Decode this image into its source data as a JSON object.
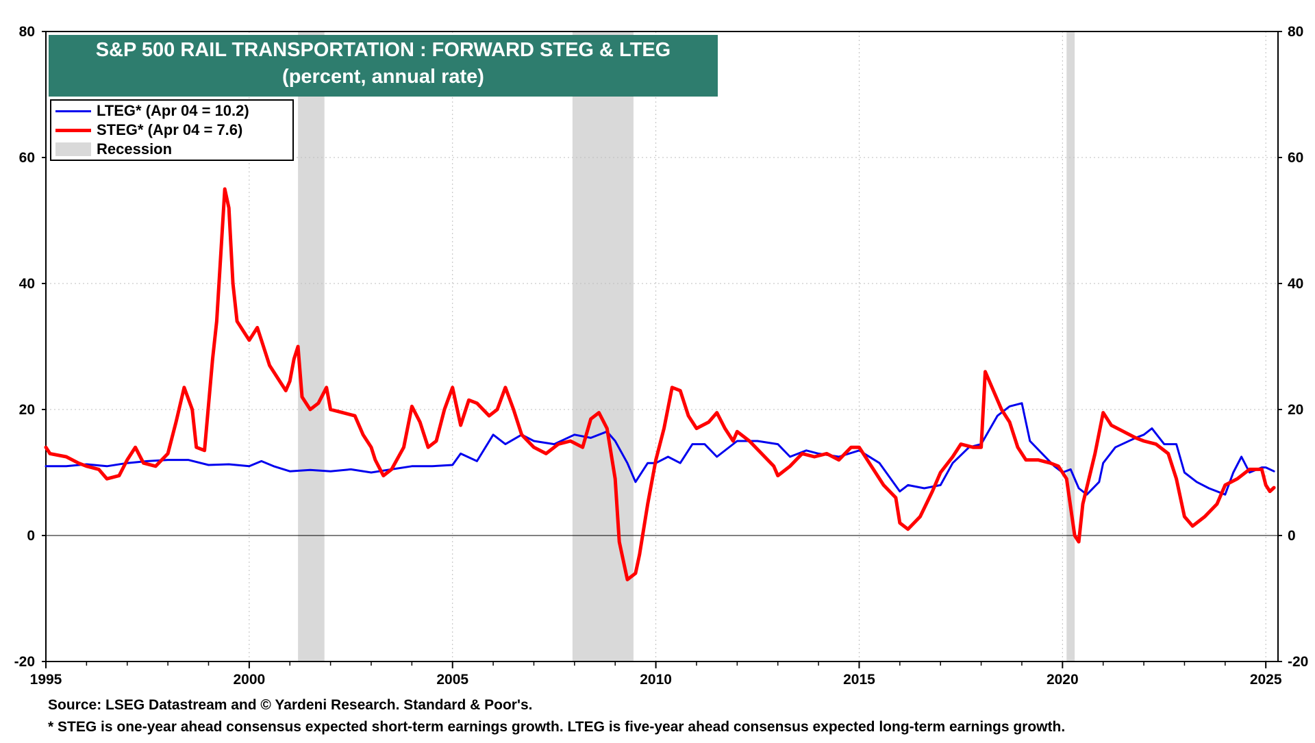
{
  "title": {
    "line1": "S&P 500 RAIL TRANSPORTATION : FORWARD STEG & LTEG",
    "line2": "(percent, annual rate)"
  },
  "legend": {
    "lteg": "LTEG* (Apr 04 = 10.2)",
    "steg": "STEG* (Apr 04 = 7.6)",
    "recession": "Recession"
  },
  "footer": {
    "source": "Source: LSEG Datastream and © Yardeni Research. Standard & Poor's.",
    "note": "* STEG is one-year ahead consensus expected short-term earnings growth. LTEG is five-year ahead consensus expected long-term earnings growth."
  },
  "colors": {
    "lteg": "#0000ee",
    "steg": "#ff0000",
    "recession": "#d9d9d9",
    "title_bg": "#2e7d6e"
  },
  "chart_data": {
    "type": "line",
    "title": "S&P 500 RAIL TRANSPORTATION : FORWARD STEG & LTEG",
    "subtitle": "(percent, annual rate)",
    "xlabel": "",
    "ylabel": "",
    "xlim": [
      1995,
      2025.3
    ],
    "ylim": [
      -20,
      80
    ],
    "x_ticks": [
      1995,
      2000,
      2005,
      2010,
      2015,
      2020,
      2025
    ],
    "x_tick_labels": [
      "1995",
      "2000",
      "2005",
      "2010",
      "2015",
      "2020",
      "2025"
    ],
    "y_ticks": [
      -20,
      0,
      20,
      40,
      60,
      80
    ],
    "y_tick_labels": [
      "-20",
      "0",
      "20",
      "40",
      "60",
      "80"
    ],
    "grid": true,
    "legend_position": "top-left",
    "recessions": [
      [
        2001.2,
        2001.85
      ],
      [
        2007.95,
        2009.45
      ],
      [
        2020.1,
        2020.3
      ]
    ],
    "series": [
      {
        "name": "LTEG* (Apr 04 = 10.2)",
        "color": "#0000ee",
        "points": [
          [
            1995,
            11
          ],
          [
            1995.5,
            11
          ],
          [
            1996,
            11.3
          ],
          [
            1996.5,
            11
          ],
          [
            1997,
            11.5
          ],
          [
            1997.5,
            11.8
          ],
          [
            1998,
            12
          ],
          [
            1998.5,
            12
          ],
          [
            1999,
            11.2
          ],
          [
            1999.5,
            11.3
          ],
          [
            2000,
            11
          ],
          [
            2000.3,
            11.8
          ],
          [
            2000.6,
            11
          ],
          [
            2001,
            10.2
          ],
          [
            2001.5,
            10.4
          ],
          [
            2002,
            10.2
          ],
          [
            2002.5,
            10.5
          ],
          [
            2003,
            10
          ],
          [
            2003.5,
            10.5
          ],
          [
            2004,
            11
          ],
          [
            2004.5,
            11
          ],
          [
            2005,
            11.2
          ],
          [
            2005.2,
            13
          ],
          [
            2005.6,
            11.8
          ],
          [
            2006,
            16
          ],
          [
            2006.3,
            14.5
          ],
          [
            2006.7,
            16
          ],
          [
            2007,
            15
          ],
          [
            2007.5,
            14.5
          ],
          [
            2008,
            16
          ],
          [
            2008.4,
            15.5
          ],
          [
            2008.8,
            16.5
          ],
          [
            2009,
            15
          ],
          [
            2009.3,
            11.5
          ],
          [
            2009.5,
            8.5
          ],
          [
            2009.8,
            11.5
          ],
          [
            2010,
            11.5
          ],
          [
            2010.3,
            12.5
          ],
          [
            2010.6,
            11.5
          ],
          [
            2010.9,
            14.5
          ],
          [
            2011.2,
            14.5
          ],
          [
            2011.5,
            12.5
          ],
          [
            2012,
            15
          ],
          [
            2012.5,
            15
          ],
          [
            2013,
            14.5
          ],
          [
            2013.3,
            12.5
          ],
          [
            2013.7,
            13.5
          ],
          [
            2014,
            13
          ],
          [
            2014.5,
            12.5
          ],
          [
            2015,
            13.5
          ],
          [
            2015.5,
            11.5
          ],
          [
            2016,
            7
          ],
          [
            2016.2,
            8
          ],
          [
            2016.6,
            7.5
          ],
          [
            2017,
            8
          ],
          [
            2017.3,
            11.5
          ],
          [
            2017.7,
            14
          ],
          [
            2018,
            14.5
          ],
          [
            2018.4,
            19
          ],
          [
            2018.7,
            20.5
          ],
          [
            2019,
            21
          ],
          [
            2019.2,
            15
          ],
          [
            2019.5,
            13
          ],
          [
            2019.8,
            11
          ],
          [
            2020,
            10
          ],
          [
            2020.2,
            10.5
          ],
          [
            2020.4,
            7.5
          ],
          [
            2020.6,
            6.5
          ],
          [
            2020.9,
            8.5
          ],
          [
            2021,
            11.5
          ],
          [
            2021.3,
            14
          ],
          [
            2021.8,
            15.5
          ],
          [
            2022,
            16
          ],
          [
            2022.2,
            17
          ],
          [
            2022.5,
            14.5
          ],
          [
            2022.8,
            14.5
          ],
          [
            2023,
            10
          ],
          [
            2023.3,
            8.5
          ],
          [
            2023.6,
            7.5
          ],
          [
            2024,
            6.5
          ],
          [
            2024.2,
            10
          ],
          [
            2024.4,
            12.5
          ],
          [
            2024.6,
            10
          ],
          [
            2024.9,
            10.8
          ],
          [
            2025,
            10.8
          ],
          [
            2025.2,
            10.2
          ]
        ]
      },
      {
        "name": "STEG* (Apr 04 = 7.6)",
        "color": "#ff0000",
        "points": [
          [
            1995,
            14
          ],
          [
            1995.1,
            13
          ],
          [
            1995.5,
            12.5
          ],
          [
            1995.8,
            11.5
          ],
          [
            1996,
            11
          ],
          [
            1996.3,
            10.5
          ],
          [
            1996.5,
            9
          ],
          [
            1996.8,
            9.5
          ],
          [
            1997,
            12
          ],
          [
            1997.2,
            14
          ],
          [
            1997.4,
            11.5
          ],
          [
            1997.7,
            11
          ],
          [
            1998,
            13
          ],
          [
            1998.2,
            18
          ],
          [
            1998.4,
            23.5
          ],
          [
            1998.6,
            20
          ],
          [
            1998.7,
            14
          ],
          [
            1998.9,
            13.5
          ],
          [
            1999.1,
            28
          ],
          [
            1999.2,
            34
          ],
          [
            1999.4,
            55
          ],
          [
            1999.5,
            52
          ],
          [
            1999.6,
            40
          ],
          [
            1999.7,
            34
          ],
          [
            2000,
            31
          ],
          [
            2000.2,
            33
          ],
          [
            2000.3,
            31
          ],
          [
            2000.5,
            27
          ],
          [
            2000.7,
            25
          ],
          [
            2000.9,
            23
          ],
          [
            2001,
            24.5
          ],
          [
            2001.1,
            28
          ],
          [
            2001.2,
            30
          ],
          [
            2001.3,
            22
          ],
          [
            2001.5,
            20
          ],
          [
            2001.7,
            21
          ],
          [
            2001.9,
            23.5
          ],
          [
            2002,
            20
          ],
          [
            2002.3,
            19.5
          ],
          [
            2002.6,
            19
          ],
          [
            2002.8,
            16
          ],
          [
            2003,
            14
          ],
          [
            2003.1,
            12
          ],
          [
            2003.3,
            9.5
          ],
          [
            2003.5,
            10.5
          ],
          [
            2003.8,
            14
          ],
          [
            2004,
            20.5
          ],
          [
            2004.2,
            18
          ],
          [
            2004.4,
            14
          ],
          [
            2004.6,
            15
          ],
          [
            2004.8,
            20
          ],
          [
            2005,
            23.5
          ],
          [
            2005.2,
            17.5
          ],
          [
            2005.4,
            21.5
          ],
          [
            2005.6,
            21
          ],
          [
            2005.9,
            19
          ],
          [
            2006.1,
            20
          ],
          [
            2006.3,
            23.5
          ],
          [
            2006.5,
            20
          ],
          [
            2006.7,
            16
          ],
          [
            2007,
            14
          ],
          [
            2007.3,
            13
          ],
          [
            2007.6,
            14.5
          ],
          [
            2007.9,
            15
          ],
          [
            2008.2,
            14
          ],
          [
            2008.4,
            18.5
          ],
          [
            2008.6,
            19.5
          ],
          [
            2008.8,
            17
          ],
          [
            2009,
            9
          ],
          [
            2009.1,
            -1
          ],
          [
            2009.3,
            -7
          ],
          [
            2009.5,
            -6
          ],
          [
            2009.6,
            -3
          ],
          [
            2009.8,
            5
          ],
          [
            2010,
            12
          ],
          [
            2010.2,
            17
          ],
          [
            2010.4,
            23.5
          ],
          [
            2010.6,
            23
          ],
          [
            2010.8,
            19
          ],
          [
            2011,
            17
          ],
          [
            2011.3,
            18
          ],
          [
            2011.5,
            19.5
          ],
          [
            2011.7,
            17
          ],
          [
            2011.9,
            15
          ],
          [
            2012,
            16.5
          ],
          [
            2012.3,
            15
          ],
          [
            2012.6,
            13
          ],
          [
            2012.9,
            11
          ],
          [
            2013,
            9.5
          ],
          [
            2013.3,
            11
          ],
          [
            2013.6,
            13
          ],
          [
            2013.9,
            12.5
          ],
          [
            2014.2,
            13
          ],
          [
            2014.5,
            12
          ],
          [
            2014.8,
            14
          ],
          [
            2015,
            14
          ],
          [
            2015.3,
            11
          ],
          [
            2015.6,
            8
          ],
          [
            2015.9,
            6
          ],
          [
            2016,
            2
          ],
          [
            2016.2,
            1
          ],
          [
            2016.5,
            3
          ],
          [
            2016.8,
            7
          ],
          [
            2017,
            10
          ],
          [
            2017.3,
            12.5
          ],
          [
            2017.5,
            14.5
          ],
          [
            2017.8,
            14
          ],
          [
            2018,
            14
          ],
          [
            2018.1,
            26
          ],
          [
            2018.3,
            23
          ],
          [
            2018.5,
            20
          ],
          [
            2018.7,
            18
          ],
          [
            2018.9,
            14
          ],
          [
            2019.1,
            12
          ],
          [
            2019.4,
            12
          ],
          [
            2019.7,
            11.5
          ],
          [
            2019.9,
            11
          ],
          [
            2020.1,
            9
          ],
          [
            2020.3,
            0
          ],
          [
            2020.4,
            -1
          ],
          [
            2020.5,
            5
          ],
          [
            2020.8,
            13
          ],
          [
            2021,
            19.5
          ],
          [
            2021.2,
            17.5
          ],
          [
            2021.5,
            16.5
          ],
          [
            2021.8,
            15.5
          ],
          [
            2022,
            15
          ],
          [
            2022.3,
            14.5
          ],
          [
            2022.6,
            13
          ],
          [
            2022.8,
            9
          ],
          [
            2023,
            3
          ],
          [
            2023.2,
            1.5
          ],
          [
            2023.5,
            3
          ],
          [
            2023.8,
            5
          ],
          [
            2024,
            8
          ],
          [
            2024.3,
            9
          ],
          [
            2024.6,
            10.5
          ],
          [
            2024.9,
            10.5
          ],
          [
            2025,
            8
          ],
          [
            2025.1,
            7
          ],
          [
            2025.2,
            7.6
          ]
        ]
      }
    ]
  }
}
